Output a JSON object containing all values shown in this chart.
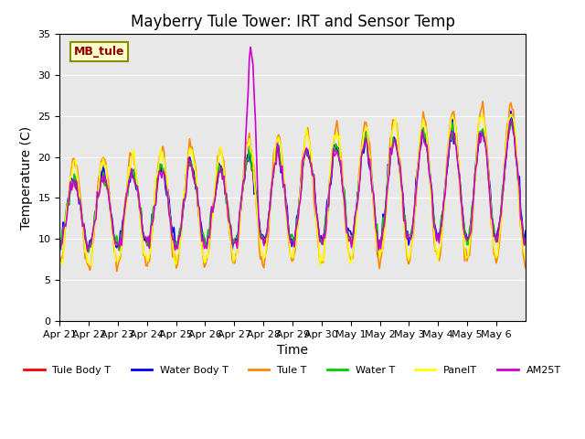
{
  "title": "Mayberry Tule Tower: IRT and Sensor Temp",
  "xlabel": "Time",
  "ylabel": "Temperature (C)",
  "ylim": [
    0,
    35
  ],
  "yticks": [
    0,
    5,
    10,
    15,
    20,
    25,
    30,
    35
  ],
  "x_labels": [
    "Apr 21",
    "Apr 22",
    "Apr 23",
    "Apr 24",
    "Apr 25",
    "Apr 26",
    "Apr 27",
    "Apr 28",
    "Apr 29",
    "Apr 30",
    "May 1",
    "May 2",
    "May 3",
    "May 4",
    "May 5",
    "May 6"
  ],
  "legend_label": "MB_tule",
  "lines": {
    "Tule Body T": {
      "color": "#ff0000",
      "lw": 1.2
    },
    "Water Body T": {
      "color": "#0000ff",
      "lw": 1.2
    },
    "Tule T": {
      "color": "#ff8800",
      "lw": 1.2
    },
    "Water T": {
      "color": "#00cc00",
      "lw": 1.2
    },
    "PanelT": {
      "color": "#ffff00",
      "lw": 1.2
    },
    "AM25T": {
      "color": "#cc00cc",
      "lw": 1.2
    }
  },
  "background_color": "#e8e8e8",
  "title_fontsize": 12,
  "axis_label_fontsize": 10
}
